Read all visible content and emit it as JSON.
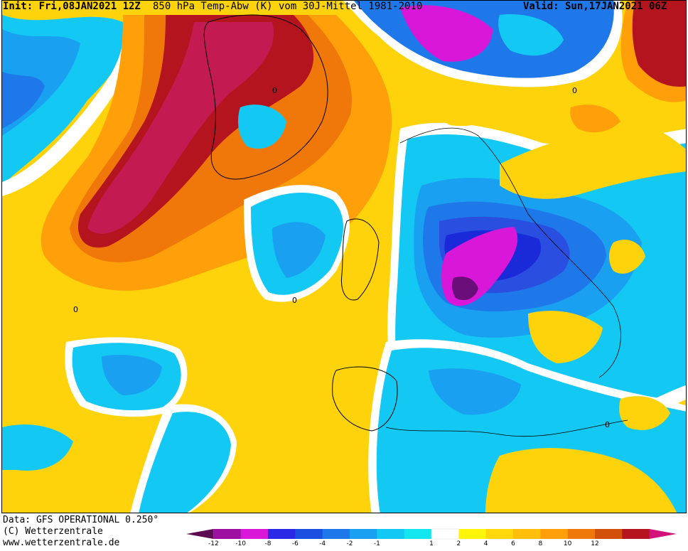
{
  "header": {
    "init": "Init: Fri,08JAN2021 12Z",
    "title": "850 hPa Temp-Abw (K) vom 30J-Mittel 1981-2010",
    "valid": "Valid: Sun,17JAN2021 06Z"
  },
  "footer": {
    "line1": "Data: GFS OPERATIONAL 0.250°",
    "line2": "(C) Wetterzentrale",
    "line3": "www.wetterzentrale.de"
  },
  "legend": {
    "colors": [
      "#5c0a52",
      "#9c0fa0",
      "#d817d8",
      "#2a2ae6",
      "#1a4fe0",
      "#1e78ea",
      "#1aa0f0",
      "#14c8f4",
      "#14e6f0",
      "#ffffff",
      "#fff50a",
      "#ffd70a",
      "#ffbf0a",
      "#ffa00a",
      "#f0780a",
      "#d2500a",
      "#b4141e",
      "#d2147a"
    ],
    "ticks": [
      "-12",
      "-10",
      "-8",
      "-6",
      "-4",
      "-2",
      "-1",
      "1",
      "2",
      "4",
      "6",
      "8",
      "10",
      "12"
    ]
  },
  "map": {
    "contour_label": "0",
    "colors": {
      "orange": "#ffc20c",
      "dark_orange": "#f0780a",
      "red": "#c41a52",
      "magenta": "#d817d8",
      "deep_purple": "#6a0f7a",
      "light_blue": "#14c8f4",
      "mid_blue": "#1e78ea",
      "dark_blue": "#2a4fe0",
      "navy": "#1a2ad8",
      "yellow": "#fff50a"
    }
  }
}
